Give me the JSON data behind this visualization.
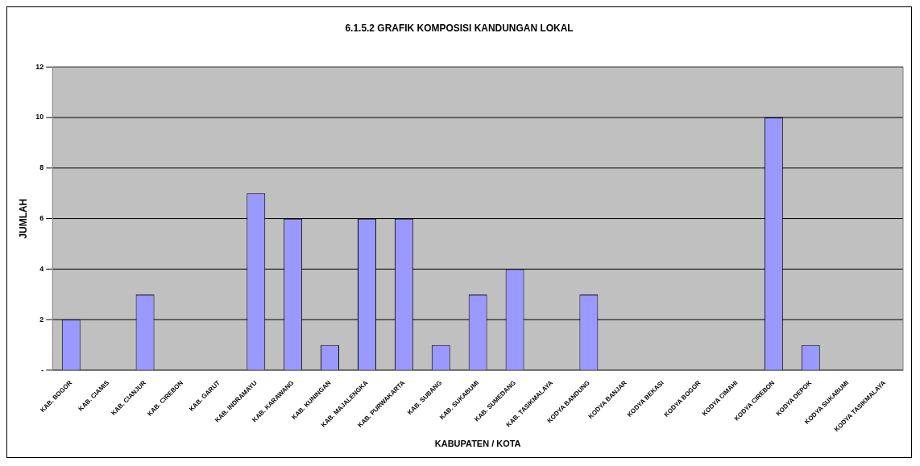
{
  "chart_data": {
    "type": "bar",
    "title": "6.1.5.2 GRAFIK KOMPOSISI KANDUNGAN LOKAL",
    "xlabel": "KABUPATEN / KOTA",
    "ylabel": "JUMLAH",
    "categories": [
      "KAB. BOGOR",
      "KAB. CIAMIS",
      "KAB. CIANJUR",
      "KAB. CIREBON",
      "KAB. GARUT",
      "KAB. INDRAMAYU",
      "KAB. KARAWANG",
      "KAB. KUNINGAN",
      "KAB. MAJALENGKA",
      "KAB. PURWAKARTA",
      "KAB. SUBANG",
      "KAB. SUKABUMI",
      "KAB. SUMEDANG",
      "KAB. TASIKMALAYA",
      "KODYA BANDUNG",
      "KODYA BANJAR",
      "KODYA BEKASI",
      "KODYA BOGOR",
      "KODYA CIMAHI",
      "KODYA CIREBON",
      "KODYA DEPOK",
      "KODYA SUKABUMI",
      "KODYA TASIKMALAYA"
    ],
    "values": [
      2,
      0,
      3,
      0,
      0,
      7,
      6,
      1,
      6,
      6,
      1,
      3,
      4,
      0,
      3,
      0,
      0,
      0,
      0,
      10,
      1,
      0,
      0
    ],
    "color": "#9999ff",
    "ylim": [
      0,
      12
    ],
    "yticks": [
      {
        "value": 0,
        "label": "-"
      },
      2,
      4,
      6,
      8,
      10,
      12
    ],
    "grid": "y",
    "legend": false
  }
}
